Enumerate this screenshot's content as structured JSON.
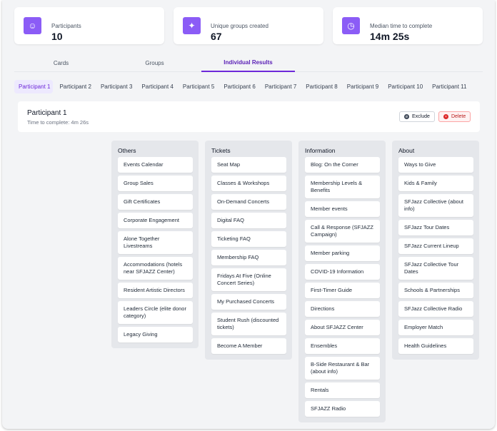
{
  "stats": [
    {
      "label": "Participants",
      "value": "10",
      "icon": "participants-icon"
    },
    {
      "label": "Unique groups created",
      "value": "67",
      "icon": "cursor-click-icon"
    },
    {
      "label": "Median time to complete",
      "value": "14m 25s",
      "icon": "clock-icon"
    }
  ],
  "tabs": [
    "Cards",
    "Groups",
    "Individual Results"
  ],
  "participant_tabs": [
    "Participant 1",
    "Participant 2",
    "Participant 3",
    "Participant 4",
    "Participant 5",
    "Participant 6",
    "Participant 7",
    "Participant 8",
    "Participant 9",
    "Participant 10",
    "Participant 11"
  ],
  "participant": {
    "name": "Participant 1",
    "time": "Time to complete: 4m 26s",
    "exclude": "Exclude",
    "delete": "Delete"
  },
  "columns": [
    {
      "title": "Others",
      "cards": [
        "Events Calendar",
        "Group Sales",
        "Gift Certificates",
        "Corporate Engagement",
        "Alone Together Livestreams",
        "Accommodations (hotels near SFJAZZ Center)",
        "Resident Artistic Directors",
        "Leaders Circle (elite donor category)",
        "Legacy Giving"
      ]
    },
    {
      "title": "Tickets",
      "cards": [
        "Seat Map",
        "Classes & Workshops",
        "On-Demand Concerts",
        "Digital FAQ",
        "Ticketing FAQ",
        "Membership FAQ",
        "Fridays At Five (Online Concert Series)",
        "My Purchased Concerts",
        "Student Rush (discounted tickets)",
        "Become A Member"
      ]
    },
    {
      "title": "Information",
      "cards": [
        "Blog: On the Corner",
        "Membership Levels & Benefits",
        "Member events",
        "Call & Response (SFJAZZ Campaign)",
        "Member parking",
        "COVID-19 Information",
        "First-Timer Guide",
        "Directions",
        "About SFJAZZ Center",
        "Ensembles",
        "B-Side Restaurant & Bar (about info)",
        "Rentals",
        "SFJAZZ Radio"
      ]
    },
    {
      "title": "About",
      "cards": [
        "Ways to Give",
        "Kids & Family",
        "SFJazz Collective (about info)",
        "SFJazz Tour Dates",
        "SFJazz Current Lineup",
        "SFJazz Collective Tour Dates",
        "Schools & Partnerships",
        "SFJazz Collective Radio",
        "Employer Match",
        "Health Guidelines"
      ]
    }
  ]
}
